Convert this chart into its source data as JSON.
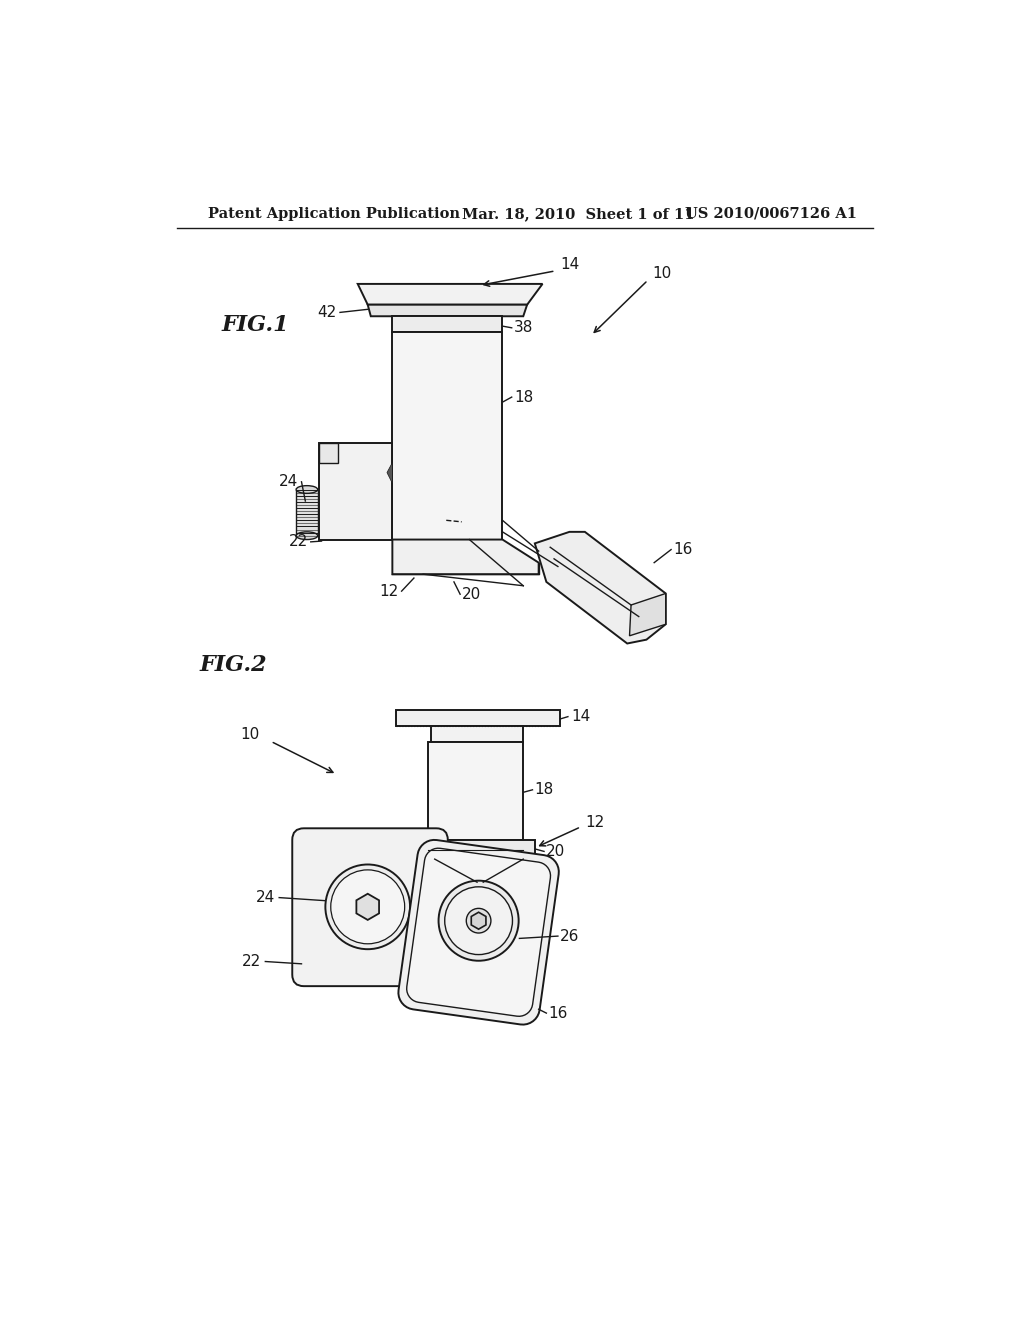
{
  "bg_color": "#ffffff",
  "line_color": "#1a1a1a",
  "header_left": "Patent Application Publication",
  "header_mid": "Mar. 18, 2010  Sheet 1 of 11",
  "header_right": "US 2010/0067126 A1",
  "fig1_label": "FIG.1",
  "fig2_label": "FIG.2",
  "header_fontsize": 10.5,
  "fig_label_fontsize": 16,
  "annot_fontsize": 11
}
